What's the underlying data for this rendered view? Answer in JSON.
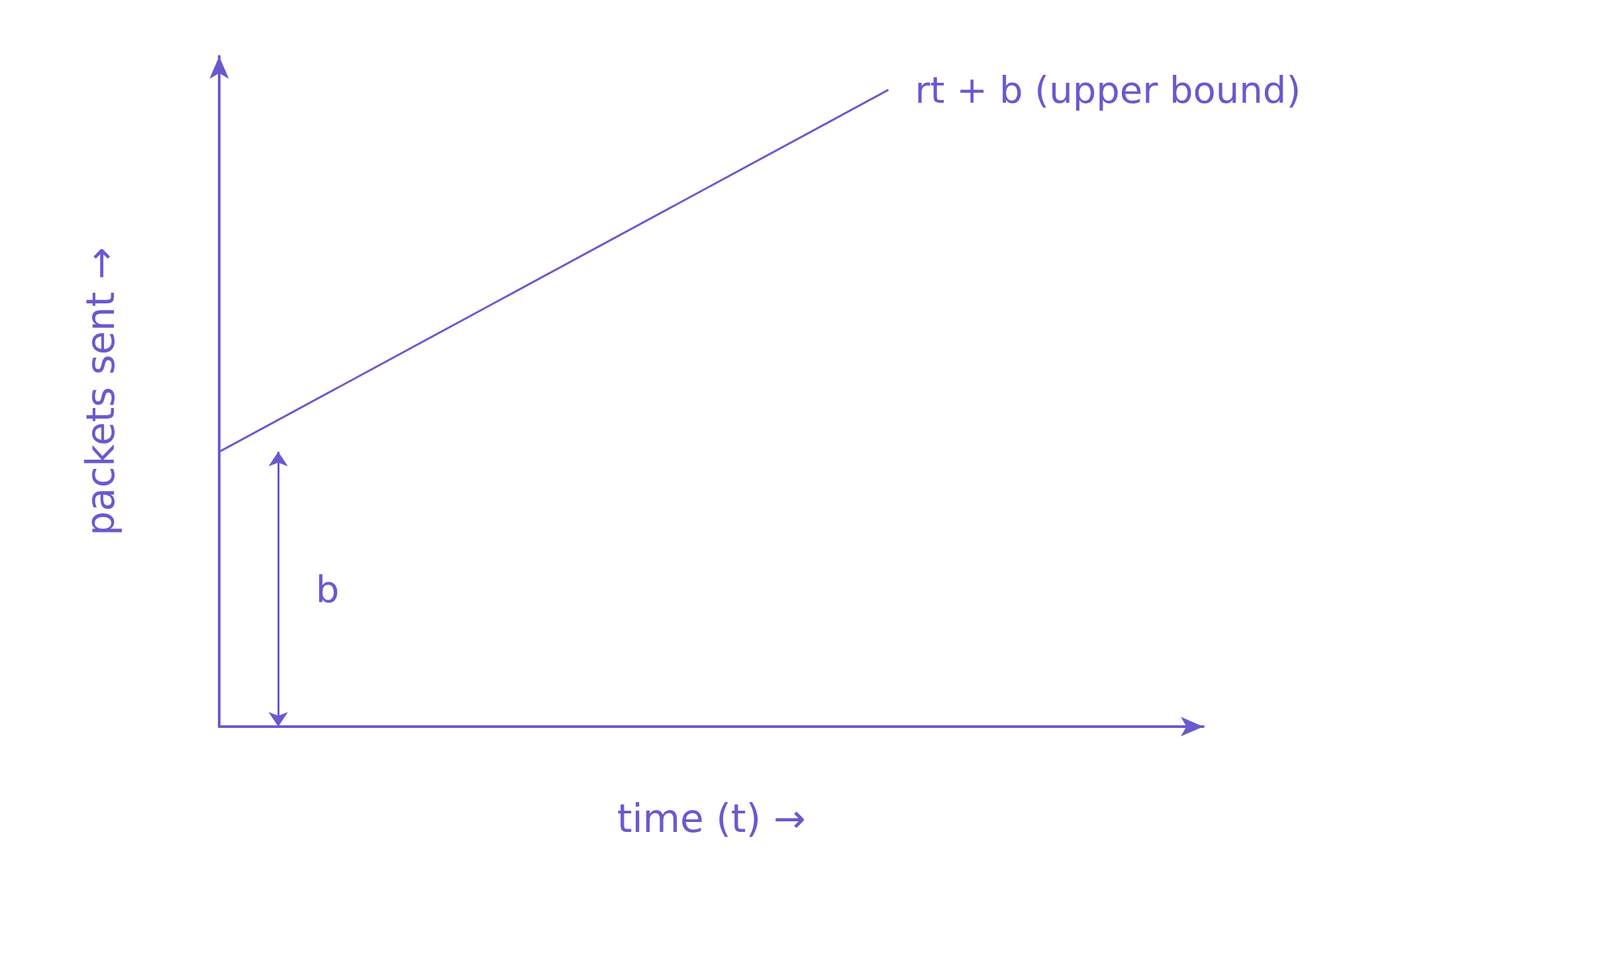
{
  "chart_data": {
    "type": "line",
    "xlabel": "time (t) →",
    "ylabel": "packets sent →",
    "annotations": [
      "rt + b (upper bound)",
      "b"
    ],
    "x": [
      0,
      6.8
    ],
    "values": [
      4.1,
      9.5
    ],
    "color": "#6a5acd",
    "xlim": [
      0,
      10
    ],
    "ylim": [
      0,
      10
    ],
    "grid": false,
    "tick_labels": false
  }
}
